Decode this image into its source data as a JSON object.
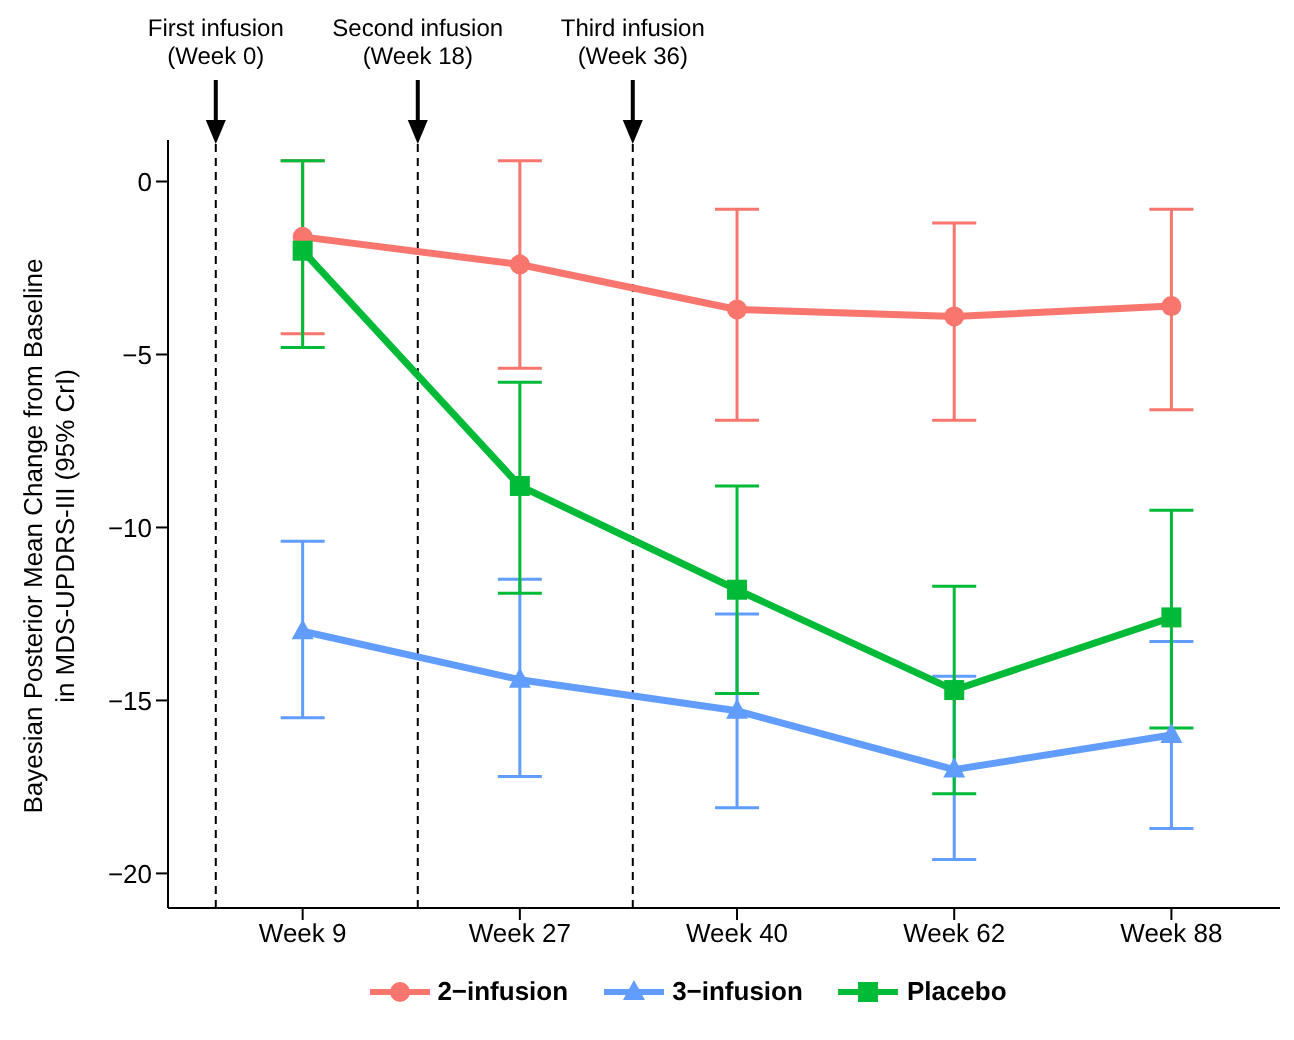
{
  "chart_data": {
    "type": "line",
    "ylabel": "Bayesian Posterior Mean Change from Baseline\nin MDS-UPDRS-III (95% CrI)",
    "categories": [
      "Week 9",
      "Week 27",
      "Week 40",
      "Week 62",
      "Week 88"
    ],
    "ylim": [
      -21,
      1.2
    ],
    "yticks": [
      0,
      -5,
      -10,
      -15,
      -20
    ],
    "grid": false,
    "legend": "bottom",
    "series": [
      {
        "name": "2−infusion",
        "color": "#f8766d",
        "marker": "circle",
        "values": [
          -1.6,
          -2.4,
          -3.7,
          -3.9,
          -3.6
        ],
        "errors": [
          [
            -4.4,
            0.6
          ],
          [
            -5.4,
            0.6
          ],
          [
            -6.9,
            -0.8
          ],
          [
            -6.9,
            -1.2
          ],
          [
            -6.6,
            -0.8
          ]
        ]
      },
      {
        "name": "3−infusion",
        "color": "#619cff",
        "marker": "triangle",
        "values": [
          -13.0,
          -14.4,
          -15.3,
          -17.0,
          -16.0
        ],
        "errors": [
          [
            -15.5,
            -10.4
          ],
          [
            -17.2,
            -11.5
          ],
          [
            -18.1,
            -12.5
          ],
          [
            -19.6,
            -14.3
          ],
          [
            -18.7,
            -13.3
          ]
        ]
      },
      {
        "name": "Placebo",
        "color": "#00ba38",
        "marker": "square",
        "values": [
          -2.0,
          -8.8,
          -11.8,
          -14.7,
          -12.6
        ],
        "errors": [
          [
            -4.8,
            0.6
          ],
          [
            -11.9,
            -5.8
          ],
          [
            -14.8,
            -8.8
          ],
          [
            -17.7,
            -11.7
          ],
          [
            -15.8,
            -9.5
          ]
        ]
      }
    ],
    "annotations": [
      "First infusion\n(Week 0)",
      "Second infusion\n(Week 18)",
      "Third infusion\n(Week 36)"
    ]
  }
}
